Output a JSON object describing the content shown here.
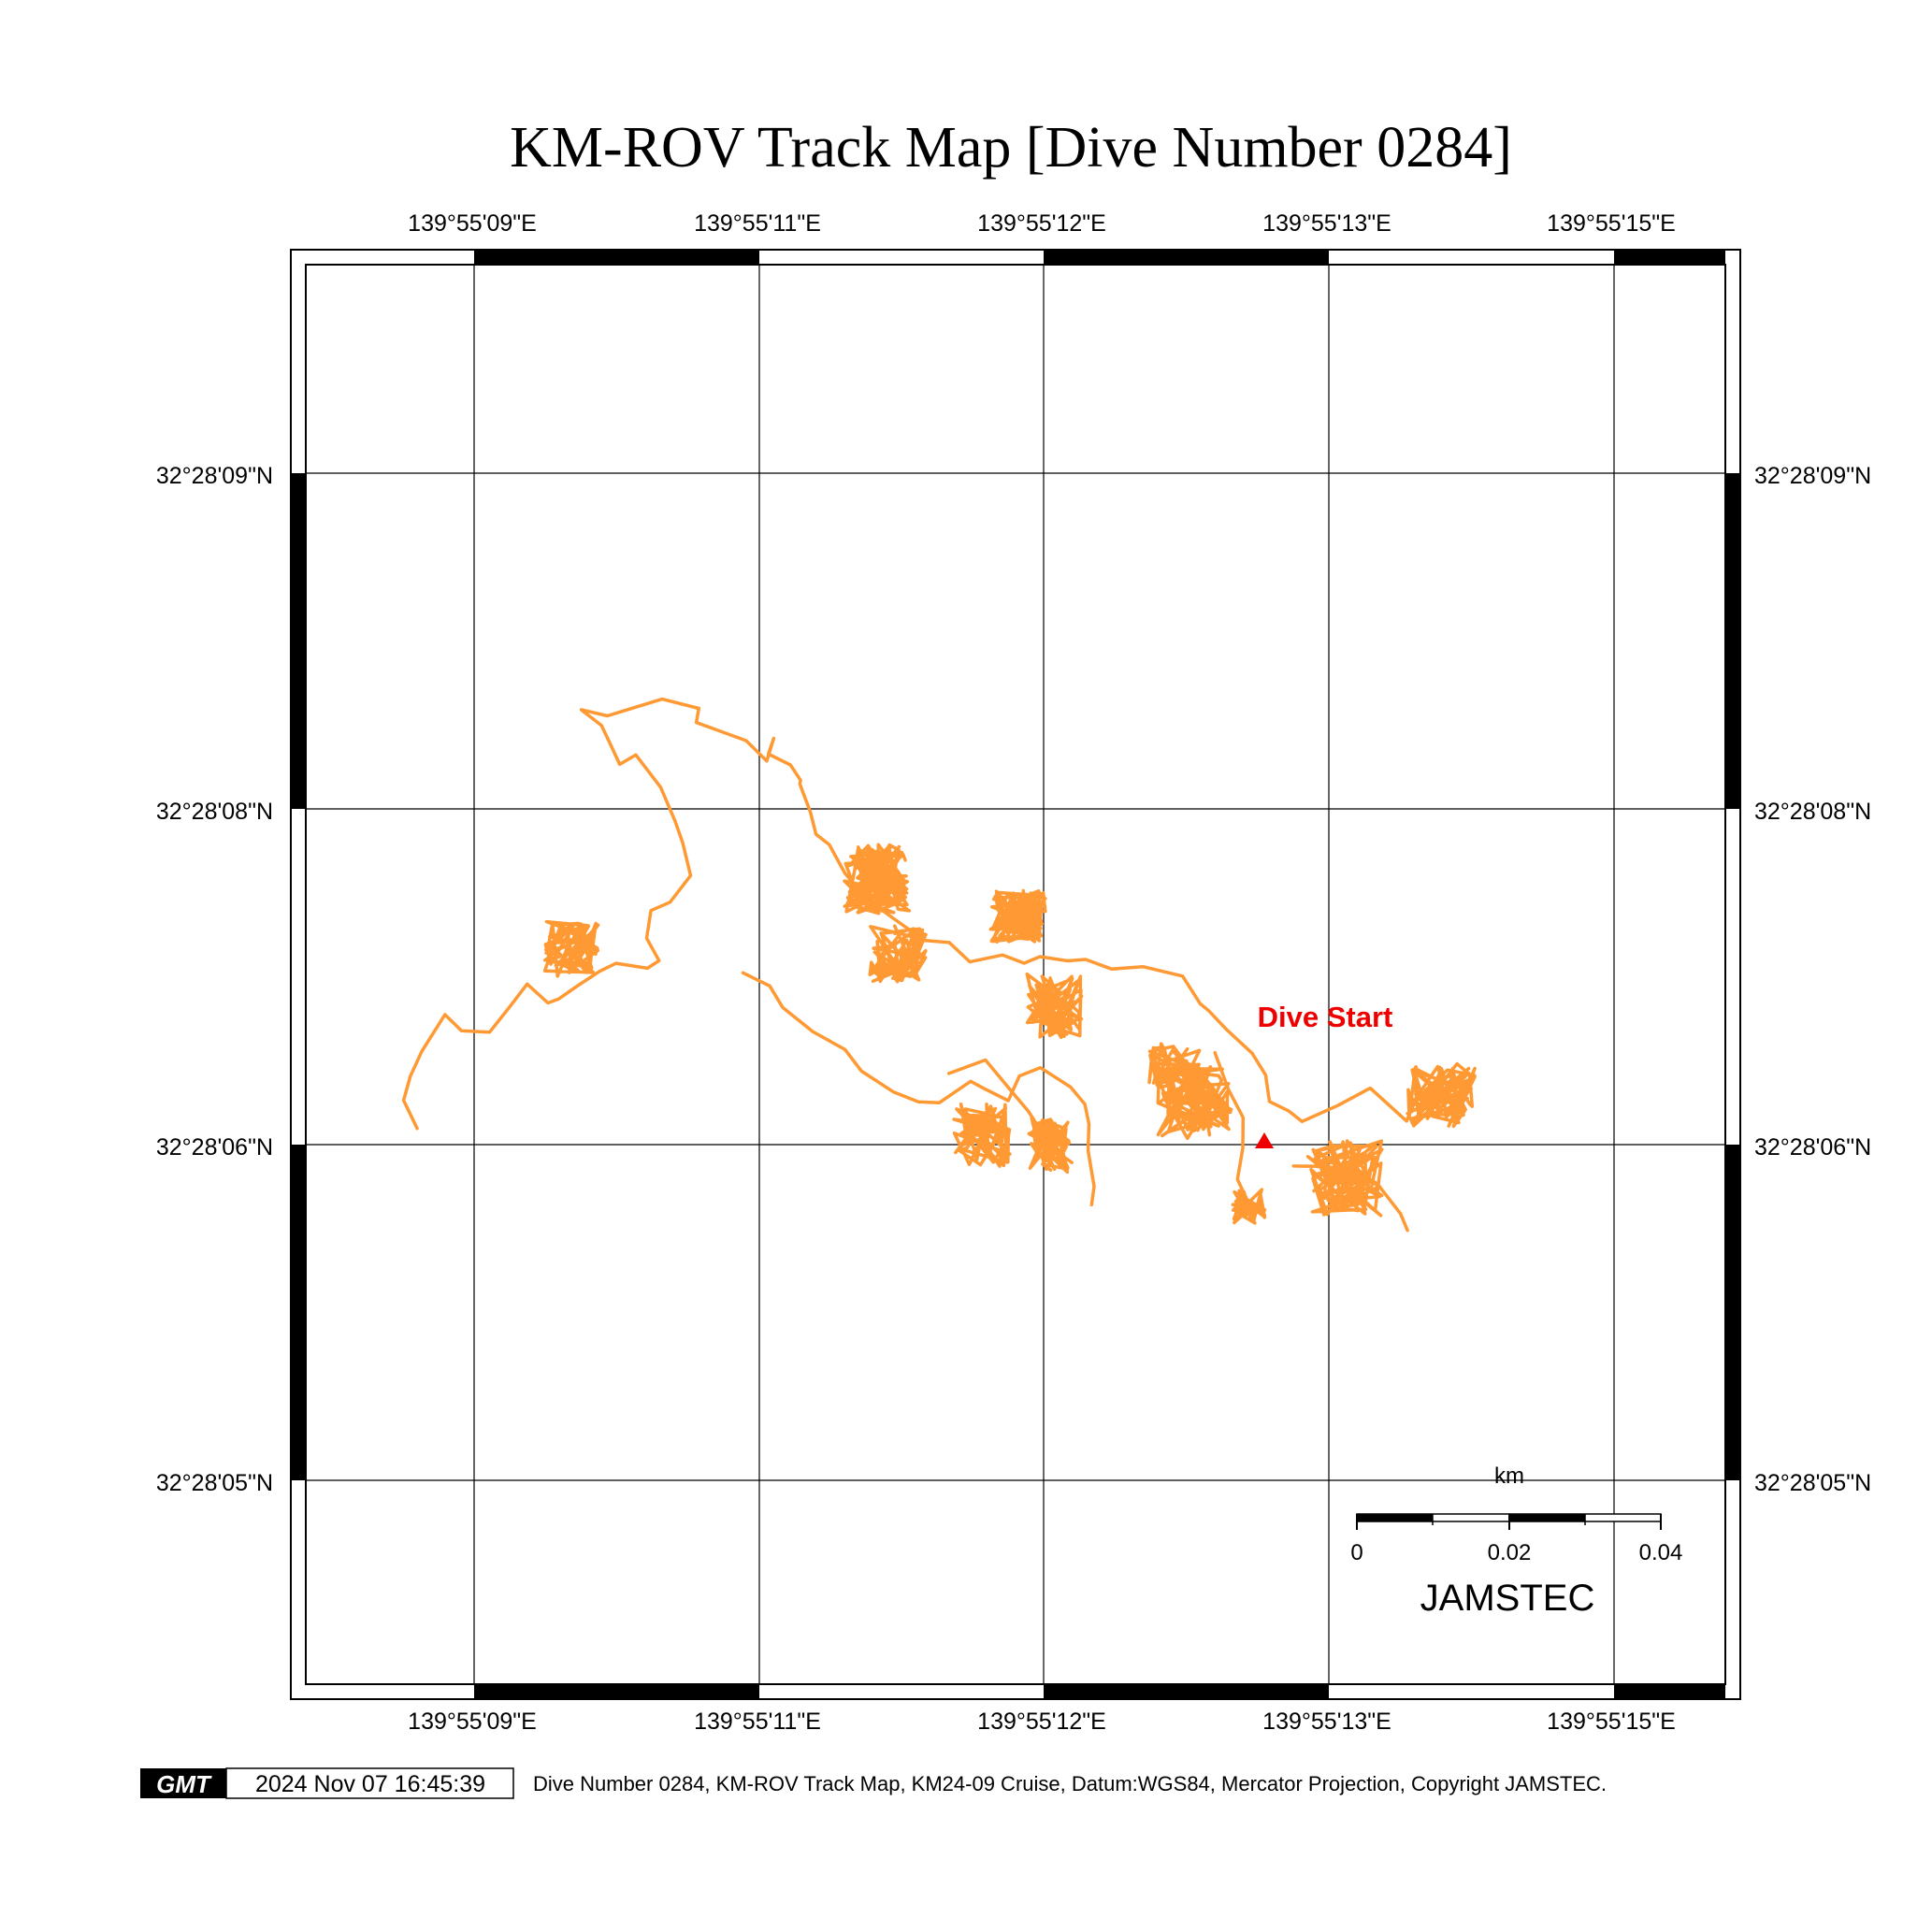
{
  "title": "KM-ROV Track Map [Dive Number 0284]",
  "lon_labels": [
    "139°55'09\"E",
    "139°55'11\"E",
    "139°55'12\"E",
    "139°55'13\"E",
    "139°55'15\"E"
  ],
  "lat_labels": [
    "32°28'09\"N",
    "32°28'08\"N",
    "32°28'06\"N",
    "32°28'05\"N"
  ],
  "marker": {
    "label": "Dive Start",
    "color": "#ee0000",
    "icon": "red-triangle-icon"
  },
  "track": {
    "color": "#ff9933"
  },
  "scale_bar": {
    "unit": "km",
    "labels": [
      "0",
      "0.02",
      "0.04"
    ]
  },
  "org": "JAMSTEC",
  "footer": {
    "logo": "GMT",
    "timestamp": "2024 Nov 07 16:45:39",
    "caption": "Dive Number 0284, KM-ROV Track Map, KM24-09 Cruise, Datum:WGS84, Mercator Projection, Copyright JAMSTEC."
  }
}
